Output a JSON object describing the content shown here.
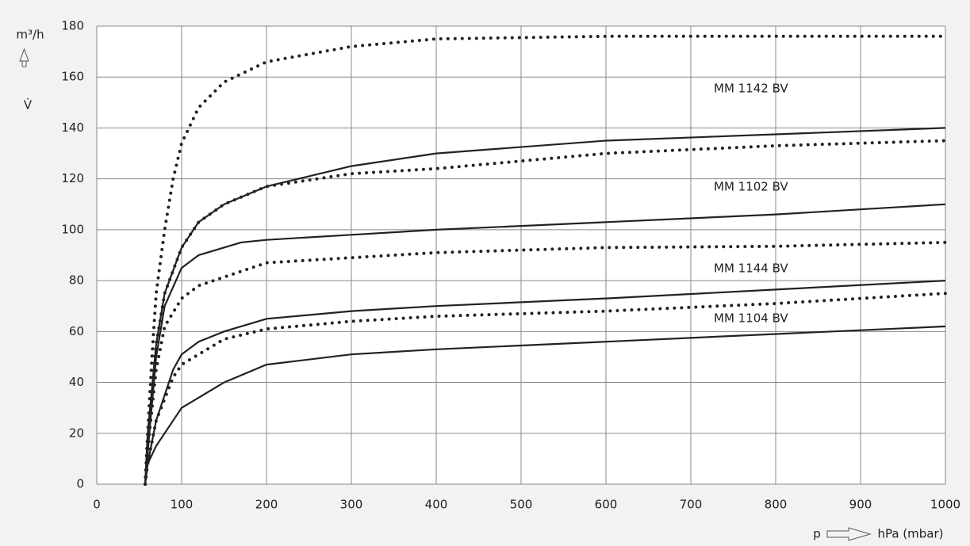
{
  "chart_data": {
    "type": "line",
    "y_label": "m³/h",
    "y_symbol": "V̇",
    "x_symbol": "p",
    "x_label": "hPa (mbar)",
    "xlim": [
      0,
      1000
    ],
    "xticks": [
      0,
      100,
      200,
      300,
      400,
      500,
      600,
      700,
      800,
      900,
      1000
    ],
    "ylim": [
      0,
      180
    ],
    "yticks": [
      0,
      20,
      40,
      60,
      80,
      100,
      120,
      140,
      160,
      180
    ],
    "grid": true,
    "annotations": [
      "MM 1142 BV",
      "MM 1102 BV",
      "MM 1144 BV",
      "MM 1104 BV"
    ],
    "series": [
      {
        "color": "#222222",
        "style": "dotted",
        "x": [
          57,
          60,
          65,
          70,
          80,
          90,
          100,
          120,
          150,
          200,
          300,
          400,
          600,
          1000
        ],
        "values": [
          0,
          20,
          50,
          75,
          100,
          120,
          134,
          148,
          158,
          166,
          172,
          175,
          176,
          176
        ]
      },
      {
        "color": "#222222",
        "style": "solid",
        "x": [
          57,
          60,
          70,
          80,
          100,
          120,
          150,
          200,
          300,
          400,
          600,
          800,
          1000
        ],
        "values": [
          0,
          20,
          55,
          75,
          93,
          103,
          110,
          117,
          125,
          130,
          135,
          137.5,
          140
        ]
      },
      {
        "color": "#222222",
        "style": "dotted",
        "x": [
          57,
          60,
          70,
          80,
          100,
          120,
          150,
          200,
          300,
          400,
          600,
          800,
          1000
        ],
        "values": [
          0,
          20,
          55,
          75,
          93,
          103,
          110,
          117,
          122,
          124,
          130,
          133,
          135
        ]
      },
      {
        "color": "#222222",
        "style": "solid",
        "x": [
          57,
          62,
          70,
          80,
          100,
          120,
          170,
          200,
          300,
          400,
          600,
          800,
          1000
        ],
        "values": [
          0,
          20,
          50,
          70,
          85,
          90,
          95,
          96,
          98,
          100,
          103,
          106,
          110
        ]
      },
      {
        "color": "#222222",
        "style": "dotted",
        "x": [
          57,
          62,
          70,
          80,
          100,
          120,
          200,
          300,
          400,
          600,
          800,
          1000
        ],
        "values": [
          0,
          20,
          45,
          62,
          73,
          78,
          87,
          89,
          91,
          93,
          93.5,
          95
        ]
      },
      {
        "color": "#222222",
        "style": "solid",
        "x": [
          57,
          60,
          70,
          90,
          100,
          120,
          150,
          200,
          300,
          400,
          600,
          800,
          1000
        ],
        "values": [
          0,
          8,
          25,
          45,
          51,
          56,
          60,
          65,
          68,
          70,
          73,
          76.5,
          80
        ]
      },
      {
        "color": "#222222",
        "style": "dotted",
        "x": [
          57,
          60,
          70,
          90,
          100,
          150,
          200,
          300,
          400,
          600,
          800,
          1000
        ],
        "values": [
          0,
          8,
          25,
          42,
          47,
          57,
          61,
          64,
          66,
          68,
          71,
          75
        ]
      },
      {
        "color": "#222222",
        "style": "solid",
        "x": [
          57,
          60,
          70,
          90,
          100,
          150,
          200,
          300,
          400,
          600,
          800,
          1000
        ],
        "values": [
          0,
          8,
          15,
          25,
          30,
          40,
          47,
          51,
          53,
          56,
          59,
          62
        ]
      }
    ]
  }
}
